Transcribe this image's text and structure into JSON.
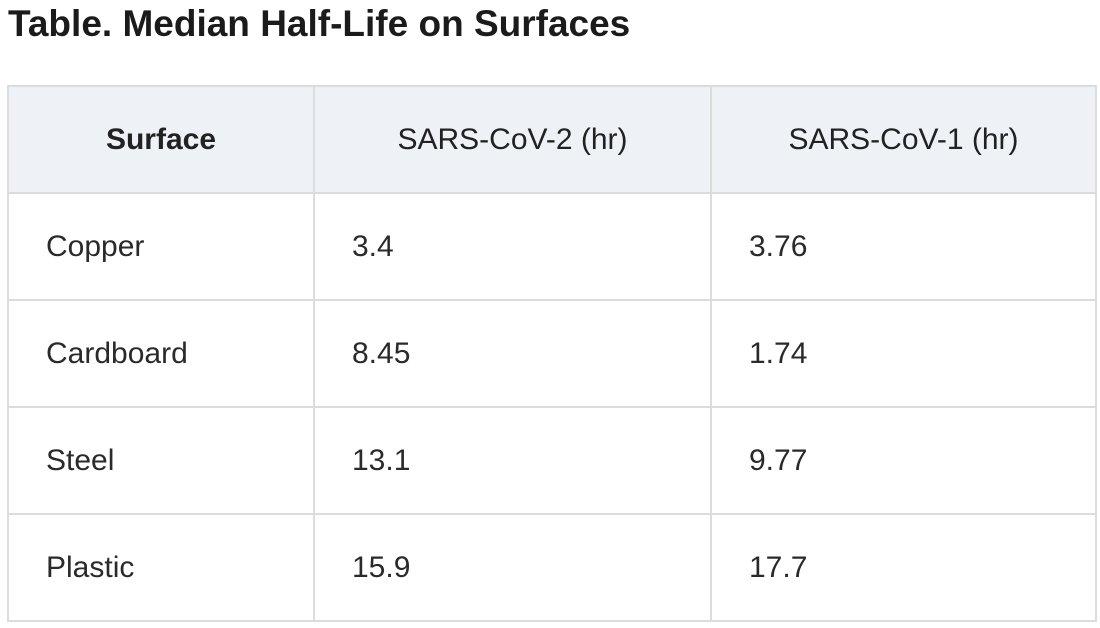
{
  "title": "Table. Median Half-Life on Surfaces",
  "table": {
    "headers": [
      "Surface",
      "SARS-CoV-2 (hr)",
      "SARS-CoV-1 (hr)"
    ],
    "rows": [
      [
        "Copper",
        "3.4",
        "3.76"
      ],
      [
        "Cardboard",
        "8.45",
        "1.74"
      ],
      [
        "Steel",
        "13.1",
        "9.77"
      ],
      [
        "Plastic",
        "15.9",
        "17.7"
      ]
    ]
  },
  "colors": {
    "header_background": "#eef2f6",
    "border": "#dcdcdc",
    "text": "#222222"
  }
}
